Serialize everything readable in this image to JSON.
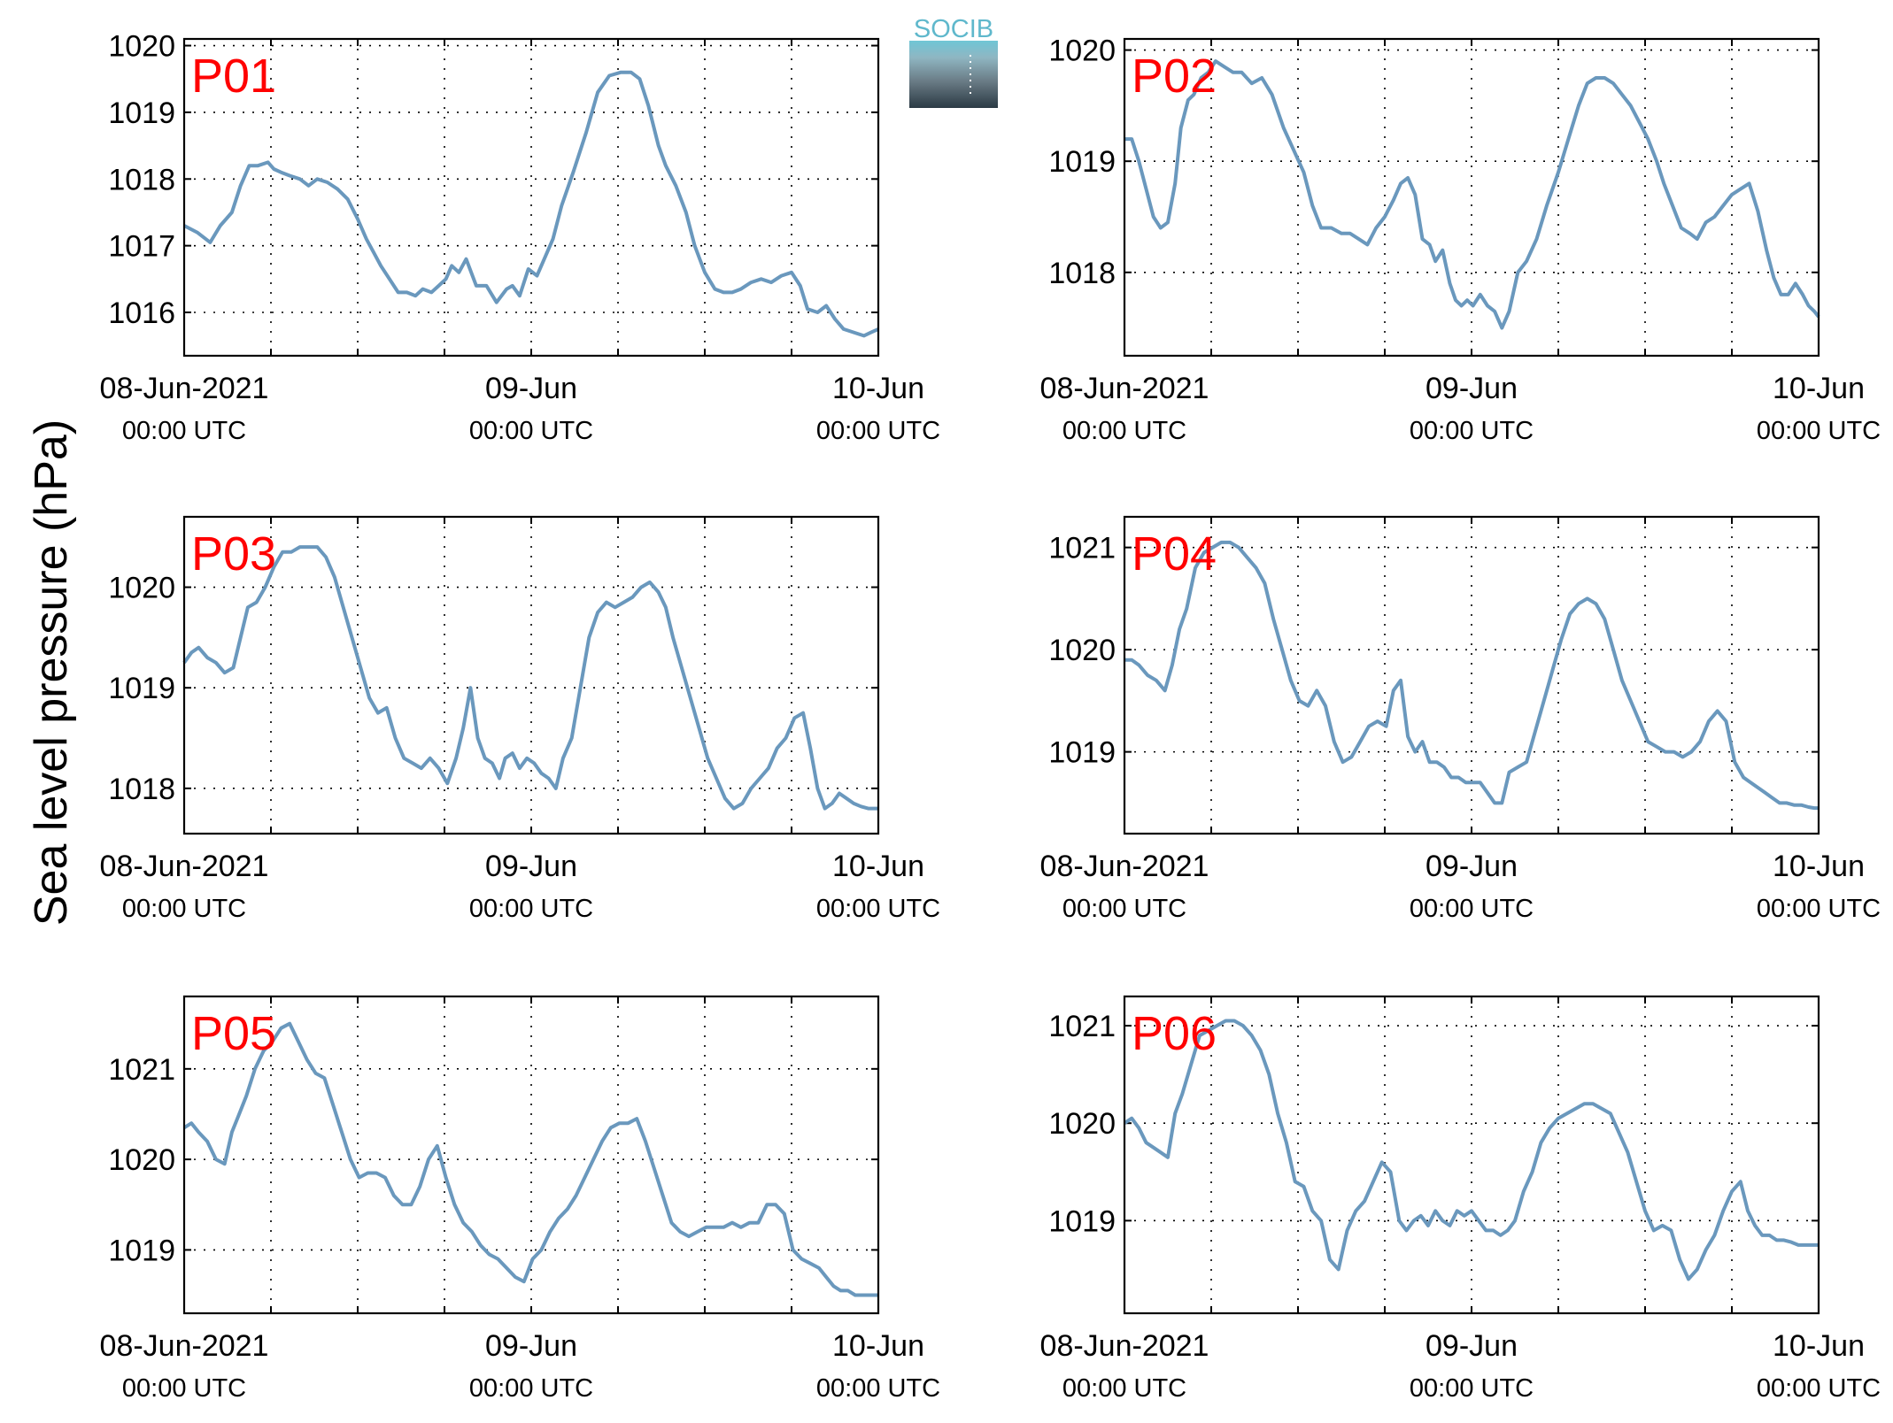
{
  "figure": {
    "ylabel": "Sea level pressure (hPa)",
    "logo_text": "SOCIB",
    "line_color": "#6a98bd",
    "label_color": "#ff0000",
    "x_tick_labels": [
      {
        "date": "08-Jun-2021",
        "time": "00:00 UTC"
      },
      {
        "date": "09-Jun",
        "time": "00:00 UTC"
      },
      {
        "date": "10-Jun",
        "time": "00:00 UTC"
      }
    ]
  },
  "chart_data": [
    {
      "type": "line",
      "label": "P01",
      "xlim": [
        0,
        48
      ],
      "ylim": [
        1015.35,
        1020.1
      ],
      "yticks": [
        1016,
        1017,
        1018,
        1019,
        1020
      ],
      "grid": true,
      "x": [
        0,
        0.9,
        1.8,
        2.5,
        3.3,
        3.9,
        4.5,
        5.1,
        5.8,
        6.2,
        6.7,
        7.3,
        8.0,
        8.6,
        9.2,
        9.9,
        10.6,
        11.3,
        12.0,
        12.6,
        13.1,
        13.6,
        14.2,
        14.8,
        15.4,
        16.0,
        16.5,
        17.1,
        17.6,
        18.1,
        18.5,
        19.0,
        19.5,
        20.2,
        20.9,
        21.6,
        22.3,
        22.7,
        23.2,
        23.8,
        24.4,
        24.9,
        25.5,
        26.1,
        26.9,
        27.8,
        28.6,
        29.4,
        30.2,
        30.9,
        31.5,
        32.1,
        32.8,
        33.3,
        34.0,
        34.7,
        35.3,
        36.0,
        36.7,
        37.3,
        37.9,
        38.5,
        39.2,
        39.9,
        40.6,
        41.3,
        42.0,
        42.6,
        43.1,
        43.8,
        44.4,
        45.0,
        45.6,
        46.3,
        47.0,
        47.5,
        48.0
      ],
      "y": [
        1017.3,
        1017.2,
        1017.05,
        1017.3,
        1017.5,
        1017.9,
        1018.2,
        1018.2,
        1018.25,
        1018.15,
        1018.1,
        1018.05,
        1018.0,
        1017.9,
        1018.0,
        1017.95,
        1017.85,
        1017.7,
        1017.4,
        1017.1,
        1016.9,
        1016.7,
        1016.5,
        1016.3,
        1016.3,
        1016.25,
        1016.35,
        1016.3,
        1016.4,
        1016.5,
        1016.7,
        1016.6,
        1016.8,
        1016.4,
        1016.4,
        1016.15,
        1016.35,
        1016.4,
        1016.25,
        1016.65,
        1016.55,
        1016.8,
        1017.1,
        1017.6,
        1018.1,
        1018.7,
        1019.3,
        1019.55,
        1019.6,
        1019.6,
        1019.5,
        1019.1,
        1018.5,
        1018.2,
        1017.9,
        1017.5,
        1017.0,
        1016.6,
        1016.35,
        1016.3,
        1016.3,
        1016.35,
        1016.45,
        1016.5,
        1016.45,
        1016.55,
        1016.6,
        1016.4,
        1016.05,
        1016.0,
        1016.1,
        1015.9,
        1015.75,
        1015.7,
        1015.65,
        1015.7,
        1015.75
      ]
    },
    {
      "type": "line",
      "label": "P02",
      "xlim": [
        0,
        48
      ],
      "ylim": [
        1017.25,
        1020.1
      ],
      "yticks": [
        1018,
        1019,
        1020
      ],
      "grid": true,
      "x": [
        0,
        0.5,
        1.0,
        1.5,
        2.0,
        2.5,
        3.0,
        3.5,
        3.9,
        4.4,
        4.8,
        5.3,
        5.8,
        6.3,
        6.9,
        7.5,
        8.1,
        8.8,
        9.5,
        10.2,
        11.0,
        11.7,
        12.4,
        13.0,
        13.6,
        14.3,
        15.0,
        15.6,
        16.2,
        16.8,
        17.4,
        18.0,
        18.6,
        19.1,
        19.6,
        20.1,
        20.6,
        21.1,
        21.5,
        22.0,
        22.5,
        22.9,
        23.3,
        23.7,
        24.1,
        24.6,
        25.1,
        25.6,
        26.1,
        26.6,
        27.2,
        27.8,
        28.5,
        29.2,
        30.0,
        30.7,
        31.4,
        32.0,
        32.6,
        33.2,
        33.8,
        34.4,
        35.0,
        35.6,
        36.2,
        36.8,
        37.3,
        37.9,
        38.5,
        39.1,
        39.6,
        40.2,
        40.8,
        41.4,
        42.0,
        42.6,
        43.2,
        43.8,
        44.4,
        44.9,
        45.4,
        45.9,
        46.4,
        46.9,
        47.3,
        47.7,
        48.0
      ],
      "y": [
        1019.2,
        1019.2,
        1019.0,
        1018.75,
        1018.5,
        1018.4,
        1018.45,
        1018.8,
        1019.3,
        1019.55,
        1019.6,
        1019.75,
        1019.8,
        1019.9,
        1019.85,
        1019.8,
        1019.8,
        1019.7,
        1019.75,
        1019.6,
        1019.3,
        1019.1,
        1018.9,
        1018.6,
        1018.4,
        1018.4,
        1018.35,
        1018.35,
        1018.3,
        1018.25,
        1018.4,
        1018.5,
        1018.65,
        1018.8,
        1018.85,
        1018.7,
        1018.3,
        1018.25,
        1018.1,
        1018.2,
        1017.9,
        1017.75,
        1017.7,
        1017.75,
        1017.7,
        1017.8,
        1017.7,
        1017.65,
        1017.5,
        1017.65,
        1018.0,
        1018.1,
        1018.3,
        1018.6,
        1018.9,
        1019.2,
        1019.5,
        1019.7,
        1019.75,
        1019.75,
        1019.7,
        1019.6,
        1019.5,
        1019.35,
        1019.2,
        1019.0,
        1018.8,
        1018.6,
        1018.4,
        1018.35,
        1018.3,
        1018.45,
        1018.5,
        1018.6,
        1018.7,
        1018.75,
        1018.8,
        1018.55,
        1018.2,
        1017.95,
        1017.8,
        1017.8,
        1017.9,
        1017.8,
        1017.7,
        1017.65,
        1017.6
      ]
    },
    {
      "type": "line",
      "label": "P03",
      "xlim": [
        0,
        48
      ],
      "ylim": [
        1017.55,
        1020.7
      ],
      "yticks": [
        1018,
        1019,
        1020
      ],
      "grid": true,
      "x": [
        0,
        0.5,
        1.0,
        1.6,
        2.2,
        2.8,
        3.4,
        3.9,
        4.4,
        5.0,
        5.6,
        6.2,
        6.8,
        7.4,
        8.0,
        8.6,
        9.2,
        9.8,
        10.4,
        11.0,
        11.6,
        12.2,
        12.8,
        13.4,
        14.0,
        14.6,
        15.2,
        15.8,
        16.4,
        17.0,
        17.6,
        18.2,
        18.8,
        19.3,
        19.8,
        20.3,
        20.8,
        21.3,
        21.8,
        22.2,
        22.7,
        23.2,
        23.7,
        24.2,
        24.7,
        25.2,
        25.7,
        26.2,
        26.8,
        27.4,
        28.0,
        28.6,
        29.2,
        29.8,
        30.4,
        31.0,
        31.6,
        32.2,
        32.8,
        33.3,
        33.8,
        34.4,
        35.0,
        35.6,
        36.2,
        36.8,
        37.4,
        38.0,
        38.6,
        39.2,
        39.8,
        40.4,
        41.0,
        41.6,
        42.2,
        42.8,
        43.3,
        43.8,
        44.3,
        44.8,
        45.3,
        45.8,
        46.3,
        46.8,
        47.3,
        47.7,
        48.0
      ],
      "y": [
        1019.25,
        1019.35,
        1019.4,
        1019.3,
        1019.25,
        1019.15,
        1019.2,
        1019.5,
        1019.8,
        1019.85,
        1020.0,
        1020.2,
        1020.35,
        1020.35,
        1020.4,
        1020.4,
        1020.4,
        1020.3,
        1020.1,
        1019.8,
        1019.5,
        1019.2,
        1018.9,
        1018.75,
        1018.8,
        1018.5,
        1018.3,
        1018.25,
        1018.2,
        1018.3,
        1018.2,
        1018.05,
        1018.3,
        1018.6,
        1019.0,
        1018.5,
        1018.3,
        1018.25,
        1018.1,
        1018.3,
        1018.35,
        1018.2,
        1018.3,
        1018.25,
        1018.15,
        1018.1,
        1018.0,
        1018.3,
        1018.5,
        1019.0,
        1019.5,
        1019.75,
        1019.85,
        1019.8,
        1019.85,
        1019.9,
        1020.0,
        1020.05,
        1019.95,
        1019.8,
        1019.5,
        1019.2,
        1018.9,
        1018.6,
        1018.3,
        1018.1,
        1017.9,
        1017.8,
        1017.85,
        1018.0,
        1018.1,
        1018.2,
        1018.4,
        1018.5,
        1018.7,
        1018.75,
        1018.4,
        1018.0,
        1017.8,
        1017.85,
        1017.95,
        1017.9,
        1017.85,
        1017.82,
        1017.8,
        1017.8,
        1017.8
      ]
    },
    {
      "type": "line",
      "label": "P04",
      "xlim": [
        0,
        48
      ],
      "ylim": [
        1018.2,
        1021.3
      ],
      "yticks": [
        1019,
        1020,
        1021
      ],
      "grid": true,
      "x": [
        0,
        0.5,
        1.0,
        1.6,
        2.2,
        2.8,
        3.3,
        3.8,
        4.3,
        4.9,
        5.5,
        6.1,
        6.7,
        7.3,
        7.9,
        8.5,
        9.1,
        9.7,
        10.3,
        10.9,
        11.5,
        12.1,
        12.7,
        13.3,
        13.9,
        14.5,
        15.1,
        15.7,
        16.3,
        16.9,
        17.5,
        18.1,
        18.6,
        19.1,
        19.6,
        20.1,
        20.6,
        21.1,
        21.6,
        22.1,
        22.6,
        23.1,
        23.6,
        24.1,
        24.6,
        25.1,
        25.6,
        26.1,
        26.6,
        27.2,
        27.8,
        28.4,
        29.0,
        29.6,
        30.2,
        30.8,
        31.4,
        32.0,
        32.6,
        33.2,
        33.8,
        34.4,
        35.0,
        35.6,
        36.2,
        36.8,
        37.4,
        38.0,
        38.6,
        39.2,
        39.8,
        40.4,
        41.0,
        41.6,
        42.2,
        42.8,
        43.3,
        43.8,
        44.3,
        44.8,
        45.3,
        45.8,
        46.3,
        46.8,
        47.3,
        47.7,
        48.0
      ],
      "y": [
        1019.9,
        1019.9,
        1019.85,
        1019.75,
        1019.7,
        1019.6,
        1019.85,
        1020.2,
        1020.4,
        1020.8,
        1020.95,
        1021.0,
        1021.05,
        1021.05,
        1021.0,
        1020.9,
        1020.8,
        1020.65,
        1020.3,
        1020.0,
        1019.7,
        1019.5,
        1019.45,
        1019.6,
        1019.45,
        1019.1,
        1018.9,
        1018.95,
        1019.1,
        1019.25,
        1019.3,
        1019.25,
        1019.6,
        1019.7,
        1019.15,
        1019.0,
        1019.1,
        1018.9,
        1018.9,
        1018.85,
        1018.75,
        1018.75,
        1018.7,
        1018.7,
        1018.7,
        1018.6,
        1018.5,
        1018.5,
        1018.8,
        1018.85,
        1018.9,
        1019.2,
        1019.5,
        1019.8,
        1020.1,
        1020.35,
        1020.45,
        1020.5,
        1020.45,
        1020.3,
        1020.0,
        1019.7,
        1019.5,
        1019.3,
        1019.1,
        1019.05,
        1019.0,
        1019.0,
        1018.95,
        1019.0,
        1019.1,
        1019.3,
        1019.4,
        1019.3,
        1018.9,
        1018.75,
        1018.7,
        1018.65,
        1018.6,
        1018.55,
        1018.5,
        1018.5,
        1018.48,
        1018.48,
        1018.46,
        1018.45,
        1018.45
      ]
    },
    {
      "type": "line",
      "label": "P05",
      "xlim": [
        0,
        48
      ],
      "ylim": [
        1018.3,
        1021.8
      ],
      "yticks": [
        1019,
        1020,
        1021
      ],
      "grid": true,
      "x": [
        0,
        0.5,
        1.0,
        1.6,
        2.2,
        2.8,
        3.3,
        3.8,
        4.3,
        4.9,
        5.5,
        6.1,
        6.7,
        7.3,
        7.9,
        8.5,
        9.1,
        9.7,
        10.3,
        10.9,
        11.5,
        12.1,
        12.7,
        13.3,
        13.9,
        14.5,
        15.1,
        15.7,
        16.3,
        16.9,
        17.5,
        18.1,
        18.7,
        19.3,
        19.9,
        20.5,
        21.1,
        21.7,
        22.3,
        22.9,
        23.5,
        24.1,
        24.7,
        25.3,
        25.9,
        26.5,
        27.1,
        27.7,
        28.3,
        28.9,
        29.5,
        30.1,
        30.7,
        31.3,
        31.9,
        32.5,
        33.1,
        33.7,
        34.3,
        34.9,
        35.5,
        36.1,
        36.7,
        37.3,
        37.9,
        38.5,
        39.1,
        39.7,
        40.3,
        40.9,
        41.5,
        42.1,
        42.7,
        43.3,
        43.9,
        44.4,
        44.9,
        45.4,
        45.9,
        46.4,
        46.9,
        47.3,
        47.7,
        48.0
      ],
      "y": [
        1020.35,
        1020.4,
        1020.3,
        1020.2,
        1020.0,
        1019.95,
        1020.3,
        1020.5,
        1020.7,
        1021.0,
        1021.2,
        1021.3,
        1021.45,
        1021.5,
        1021.3,
        1021.1,
        1020.95,
        1020.9,
        1020.6,
        1020.3,
        1020.0,
        1019.8,
        1019.85,
        1019.85,
        1019.8,
        1019.6,
        1019.5,
        1019.5,
        1019.7,
        1020.0,
        1020.15,
        1019.8,
        1019.5,
        1019.3,
        1019.2,
        1019.05,
        1018.95,
        1018.9,
        1018.8,
        1018.7,
        1018.65,
        1018.9,
        1019.0,
        1019.2,
        1019.35,
        1019.45,
        1019.6,
        1019.8,
        1020.0,
        1020.2,
        1020.35,
        1020.4,
        1020.4,
        1020.45,
        1020.2,
        1019.9,
        1019.6,
        1019.3,
        1019.2,
        1019.15,
        1019.2,
        1019.25,
        1019.25,
        1019.25,
        1019.3,
        1019.25,
        1019.3,
        1019.3,
        1019.5,
        1019.5,
        1019.4,
        1019.0,
        1018.9,
        1018.85,
        1018.8,
        1018.7,
        1018.6,
        1018.55,
        1018.55,
        1018.5,
        1018.5,
        1018.5,
        1018.5,
        1018.5
      ]
    },
    {
      "type": "line",
      "label": "P06",
      "xlim": [
        0,
        48
      ],
      "ylim": [
        1018.05,
        1021.3
      ],
      "yticks": [
        1019,
        1020,
        1021
      ],
      "grid": true,
      "x": [
        0,
        0.5,
        1.0,
        1.5,
        2.0,
        2.5,
        3.0,
        3.5,
        4.0,
        4.6,
        5.2,
        5.8,
        6.4,
        7.0,
        7.6,
        8.2,
        8.8,
        9.4,
        10.0,
        10.6,
        11.2,
        11.8,
        12.4,
        13.0,
        13.6,
        14.2,
        14.8,
        15.4,
        16.0,
        16.6,
        17.2,
        17.8,
        18.4,
        19.0,
        19.5,
        20.0,
        20.5,
        21.0,
        21.5,
        22.0,
        22.5,
        23.0,
        23.5,
        24.0,
        24.5,
        25.0,
        25.5,
        26.0,
        26.5,
        27.0,
        27.6,
        28.2,
        28.8,
        29.4,
        30.0,
        30.6,
        31.2,
        31.8,
        32.4,
        33.0,
        33.6,
        34.2,
        34.8,
        35.4,
        36.0,
        36.6,
        37.2,
        37.8,
        38.4,
        39.0,
        39.6,
        40.2,
        40.8,
        41.4,
        42.0,
        42.6,
        43.1,
        43.6,
        44.1,
        44.6,
        45.1,
        45.6,
        46.1,
        46.6,
        47.0,
        47.4,
        48.0
      ],
      "y": [
        1020.0,
        1020.05,
        1019.95,
        1019.8,
        1019.75,
        1019.7,
        1019.65,
        1020.1,
        1020.3,
        1020.6,
        1020.9,
        1020.95,
        1021.0,
        1021.05,
        1021.05,
        1021.0,
        1020.9,
        1020.75,
        1020.5,
        1020.1,
        1019.8,
        1019.4,
        1019.35,
        1019.1,
        1019.0,
        1018.6,
        1018.5,
        1018.9,
        1019.1,
        1019.2,
        1019.4,
        1019.6,
        1019.5,
        1019.0,
        1018.9,
        1019.0,
        1019.05,
        1018.95,
        1019.1,
        1019.0,
        1018.95,
        1019.1,
        1019.05,
        1019.1,
        1019.0,
        1018.9,
        1018.9,
        1018.85,
        1018.9,
        1019.0,
        1019.3,
        1019.5,
        1019.8,
        1019.95,
        1020.05,
        1020.1,
        1020.15,
        1020.2,
        1020.2,
        1020.15,
        1020.1,
        1019.9,
        1019.7,
        1019.4,
        1019.1,
        1018.9,
        1018.95,
        1018.9,
        1018.6,
        1018.4,
        1018.5,
        1018.7,
        1018.85,
        1019.1,
        1019.3,
        1019.4,
        1019.1,
        1018.95,
        1018.85,
        1018.85,
        1018.8,
        1018.8,
        1018.78,
        1018.75,
        1018.75,
        1018.75,
        1018.75
      ]
    }
  ]
}
